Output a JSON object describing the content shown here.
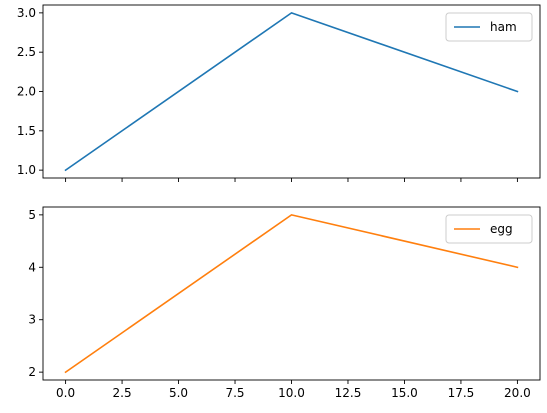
{
  "chart_data": [
    {
      "type": "line",
      "title": "",
      "xlabel": "",
      "ylabel": "",
      "x": [
        0,
        10,
        20
      ],
      "series": [
        {
          "name": "ham",
          "values": [
            1,
            3,
            2
          ],
          "color": "#1f77b4"
        }
      ],
      "xlim": [
        -1,
        21
      ],
      "ylim": [
        0.9,
        3.1
      ],
      "xticks": [
        0,
        2.5,
        5,
        7.5,
        10,
        12.5,
        15,
        17.5,
        20
      ],
      "xtick_labels_visible": false,
      "yticks": [
        1.0,
        1.5,
        2.0,
        2.5,
        3.0
      ],
      "ytick_labels": [
        "1.0",
        "1.5",
        "2.0",
        "2.5",
        "3.0"
      ],
      "grid": false,
      "legend": "top-right"
    },
    {
      "type": "line",
      "title": "",
      "xlabel": "",
      "ylabel": "",
      "x": [
        0,
        10,
        20
      ],
      "series": [
        {
          "name": "egg",
          "values": [
            2,
            5,
            4
          ],
          "color": "#ff7f0e"
        }
      ],
      "xlim": [
        -1,
        21
      ],
      "ylim": [
        1.85,
        5.15
      ],
      "xticks": [
        0,
        2.5,
        5,
        7.5,
        10,
        12.5,
        15,
        17.5,
        20
      ],
      "xtick_labels": [
        "0.0",
        "2.5",
        "5.0",
        "7.5",
        "10.0",
        "12.5",
        "15.0",
        "17.5",
        "20.0"
      ],
      "xtick_labels_visible": true,
      "yticks": [
        2,
        3,
        4,
        5
      ],
      "ytick_labels": [
        "2",
        "3",
        "4",
        "5"
      ],
      "grid": false,
      "legend": "top-right"
    }
  ]
}
